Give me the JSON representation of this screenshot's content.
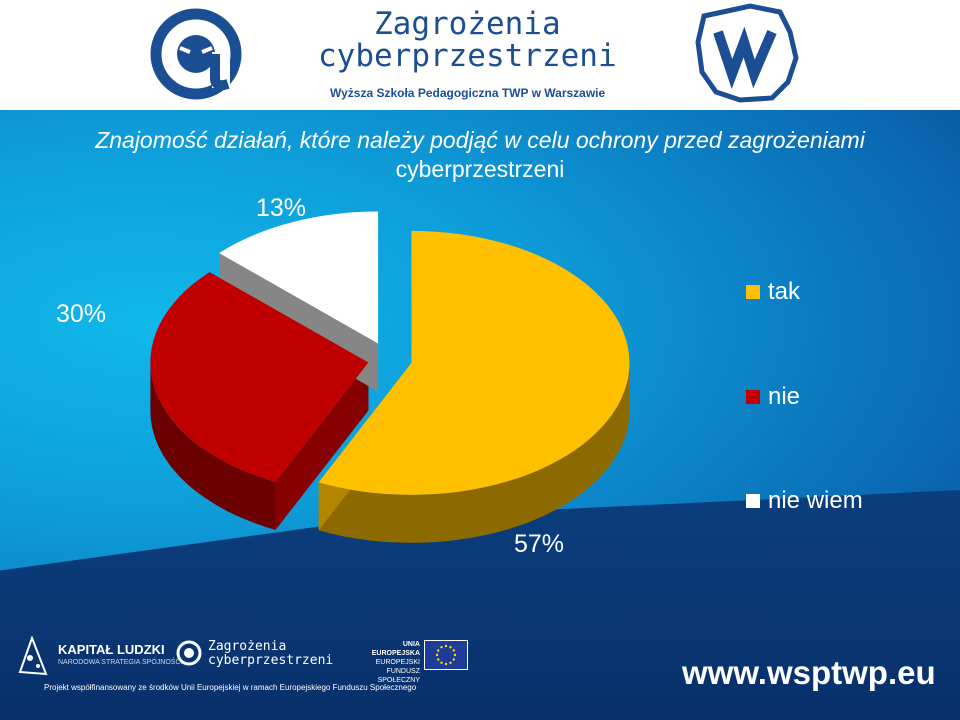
{
  "header": {
    "brand_line1": "Zagrożenia",
    "brand_line2": "cyberprzestrzeni",
    "subtitle": "Wyższa Szkoła Pedagogiczna TWP w Warszawie"
  },
  "title": {
    "line1": "Znajomość działań, które należy podjąć w celu ochrony przed zagrożeniami",
    "line2": "cyberprzestrzeni"
  },
  "chart_data": {
    "type": "pie",
    "categories": [
      "tak",
      "nie",
      "nie wiem"
    ],
    "values": [
      57,
      30,
      13
    ],
    "labels": [
      "57%",
      "30%",
      "13%"
    ],
    "colors": [
      "#ffc000",
      "#c00000",
      "#ffffff"
    ],
    "title": "Znajomość działań, które należy podjąć w celu ochrony przed zagrożeniami cyberprzestrzeni",
    "legend_position": "right"
  },
  "legend": [
    {
      "label": "tak",
      "color": "#ffc000"
    },
    {
      "label": "nie",
      "color": "#c00000"
    },
    {
      "label": "nie wiem",
      "color": "#ffffff"
    }
  ],
  "footer": {
    "kapital": "KAPITAŁ LUDZKI",
    "kapital_sub": "NARODOWA STRATEGIA SPÓJNOŚCI",
    "brand_line1": "Zagrożenia",
    "brand_line2": "cyberprzestrzeni",
    "ue_line1": "UNIA EUROPEJSKA",
    "ue_line2": "EUROPEJSKI",
    "ue_line3": "FUNDUSZ SPOŁECZNY",
    "website": "www.wsptwp.eu",
    "project_note": "Projekt współfinansowany ze środków Unii Europejskiej w ramach Europejskiego Funduszu Społecznego"
  }
}
